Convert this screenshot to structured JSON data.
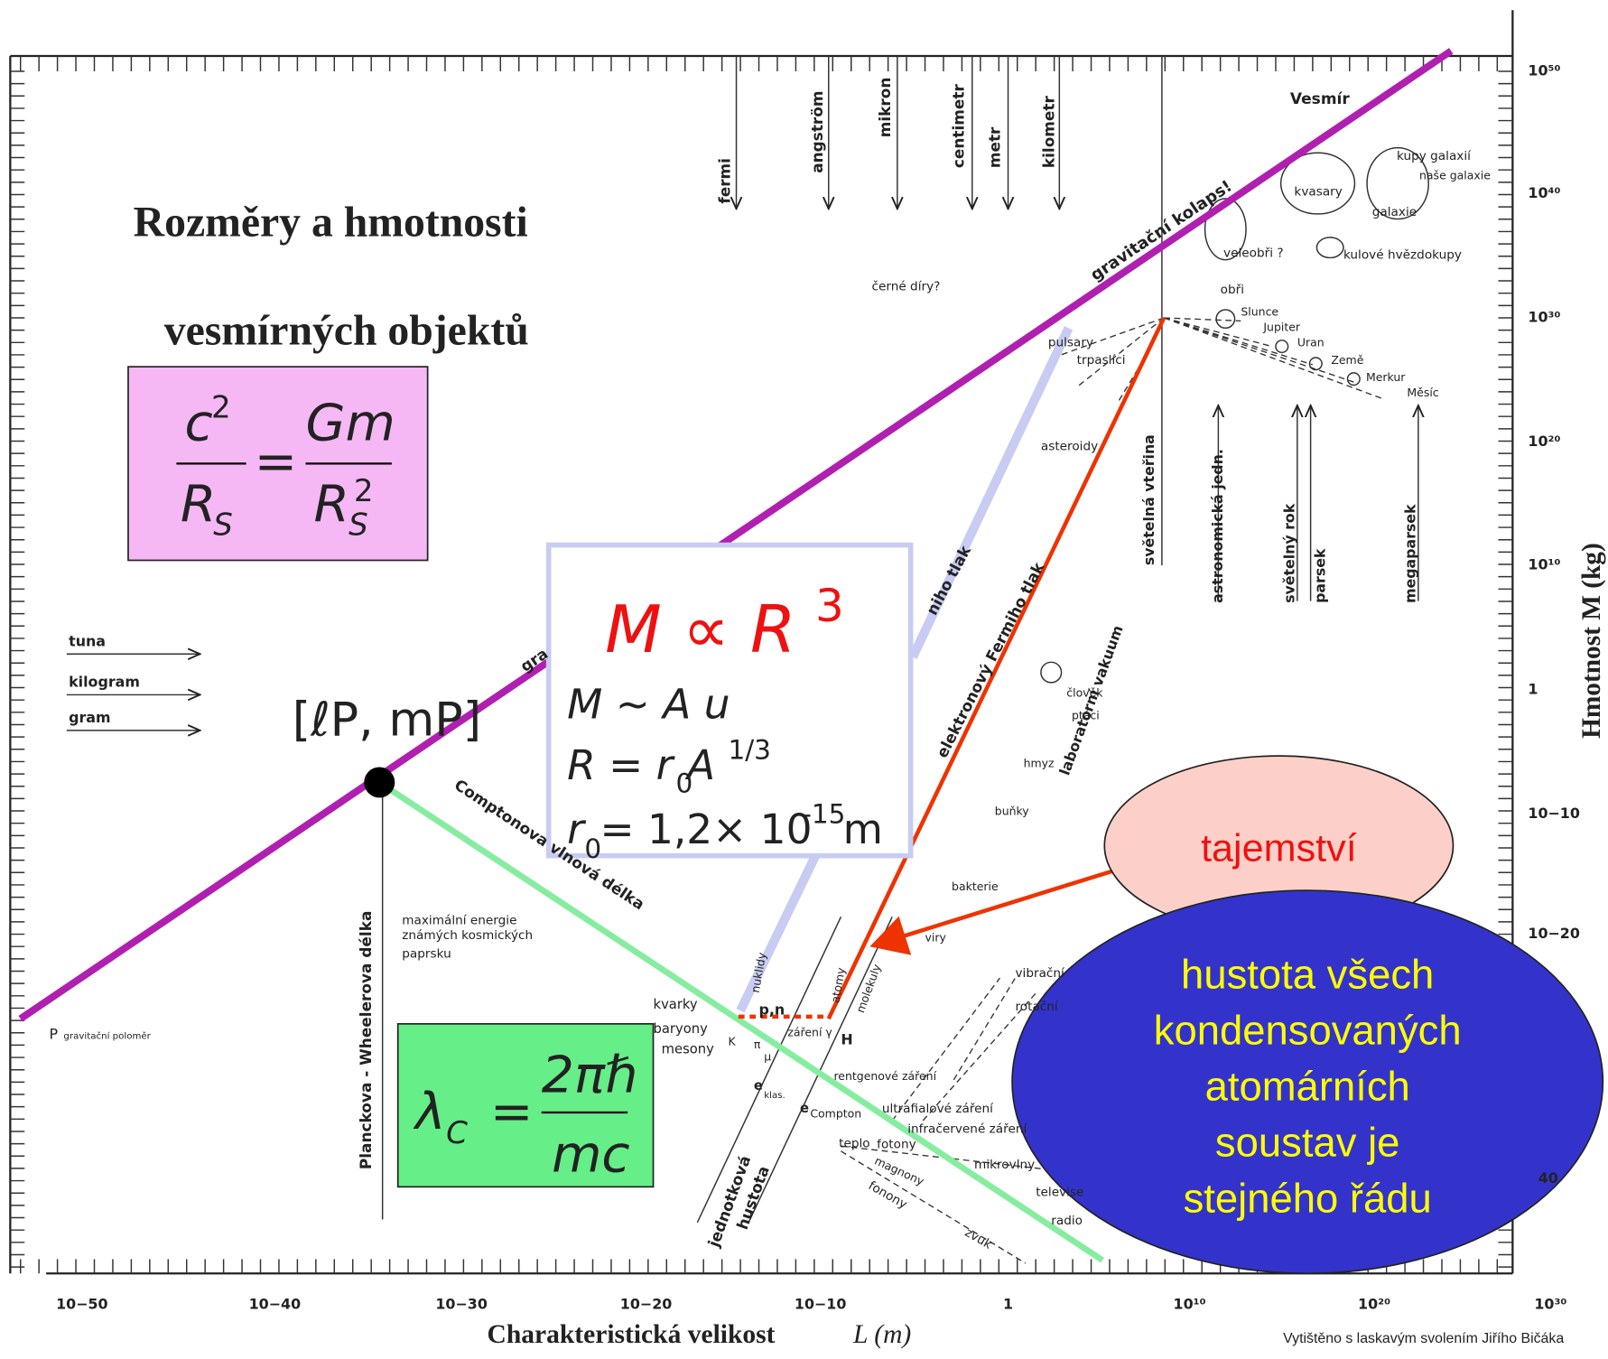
{
  "title": {
    "line1": "Rozměry   a hmotnosti",
    "line2": "vesmírných  objektů"
  },
  "schwarzschild": {
    "c": "c",
    "c_exp": "2",
    "r": "R",
    "r_sub": "S",
    "eq": "=",
    "gm": "Gm",
    "r2": "R",
    "r2_sub": "S",
    "r2_exp": "2"
  },
  "compton_formula": {
    "lambda": "λ",
    "sub": "C",
    "eq": "=",
    "num": "2πℏ",
    "den": "mc"
  },
  "density_box": {
    "line1": "M ∝ R",
    "line1_exp": "3",
    "line2": "M ~ A u",
    "line3a": "R = r",
    "line3_sub": "0",
    "line3b": " A",
    "line3_exp": "1/3",
    "line4a": "r",
    "line4_sub": "0",
    "line4b": " = 1,2× 10",
    "line4_exp": "-15",
    "line4c": " m"
  },
  "planck_point": "[ℓP, mP]",
  "mystery_oval": "tajemství",
  "density_oval": [
    "hustota všech",
    "kondensovaných",
    "atomárních",
    "soustav je",
    "stejného řádu"
  ],
  "x_axis": {
    "label": "Charakteristická velikost",
    "unit": "L (m)",
    "ticks": [
      "10−50",
      "10−40",
      "10−30",
      "10−20",
      "10−10",
      "1",
      "10¹⁰",
      "10²⁰",
      "10³⁰"
    ]
  },
  "y_axis": {
    "label": "Hmotnost  M (kg)",
    "ticks": [
      "10⁵⁰",
      "10⁴⁰",
      "10³⁰",
      "10²⁰",
      "10¹⁰",
      "1",
      "10−10",
      "10−20",
      "40"
    ]
  },
  "credit": "Vytištěno s laskavým svolením Jiřího Bičáka",
  "labels": [
    "fermi",
    "angström",
    "mikron",
    "centimetr",
    "metr",
    "kilometr",
    "Vesmír",
    "kupy galaxií",
    "naše galaxie",
    "kvasary",
    "galaxie",
    "veleobři ?",
    "kulové hvězdokupy",
    "obři",
    "Slunce",
    "Jupiter",
    "Uran",
    "Země",
    "Merkur",
    "Měsíc",
    "černé díry?",
    "gravitační kolaps!",
    "pulsary",
    "trpaslíci",
    "asteroidy",
    "světelná vteřina",
    "astronomická jedn.",
    "světelný rok",
    "parsek",
    "megaparsek",
    "elektronový Fermiho tlak",
    "laboratorní vakuum",
    "člověk",
    "ptáci",
    "hmyz",
    "buňky",
    "bakterie",
    "viry",
    "molekuly",
    "atomy",
    "nuklidy",
    "p,n",
    "H",
    "kvarky",
    "baryony",
    "mesony",
    "záření γ",
    "rentgenové záření",
    "ultrafialové záření",
    "infračervené záření",
    "teplo",
    "fotony",
    "magnony",
    "fonony",
    "zvuk",
    "mikrovlny",
    "televise",
    "radio",
    "vibrační",
    "rotační",
    "e",
    "klas.",
    "e",
    "Compton",
    "K",
    "π",
    "μ",
    "jednotková",
    "hustota",
    "Comptonova vlnová délka",
    "Planckova - Wheelerova délka",
    "maximální energie",
    "známých kosmických",
    "paprsku",
    "P",
    "gravitační poloměr",
    "tuna",
    "kilogram",
    "gram",
    "gra",
    "niho tlak"
  ]
}
